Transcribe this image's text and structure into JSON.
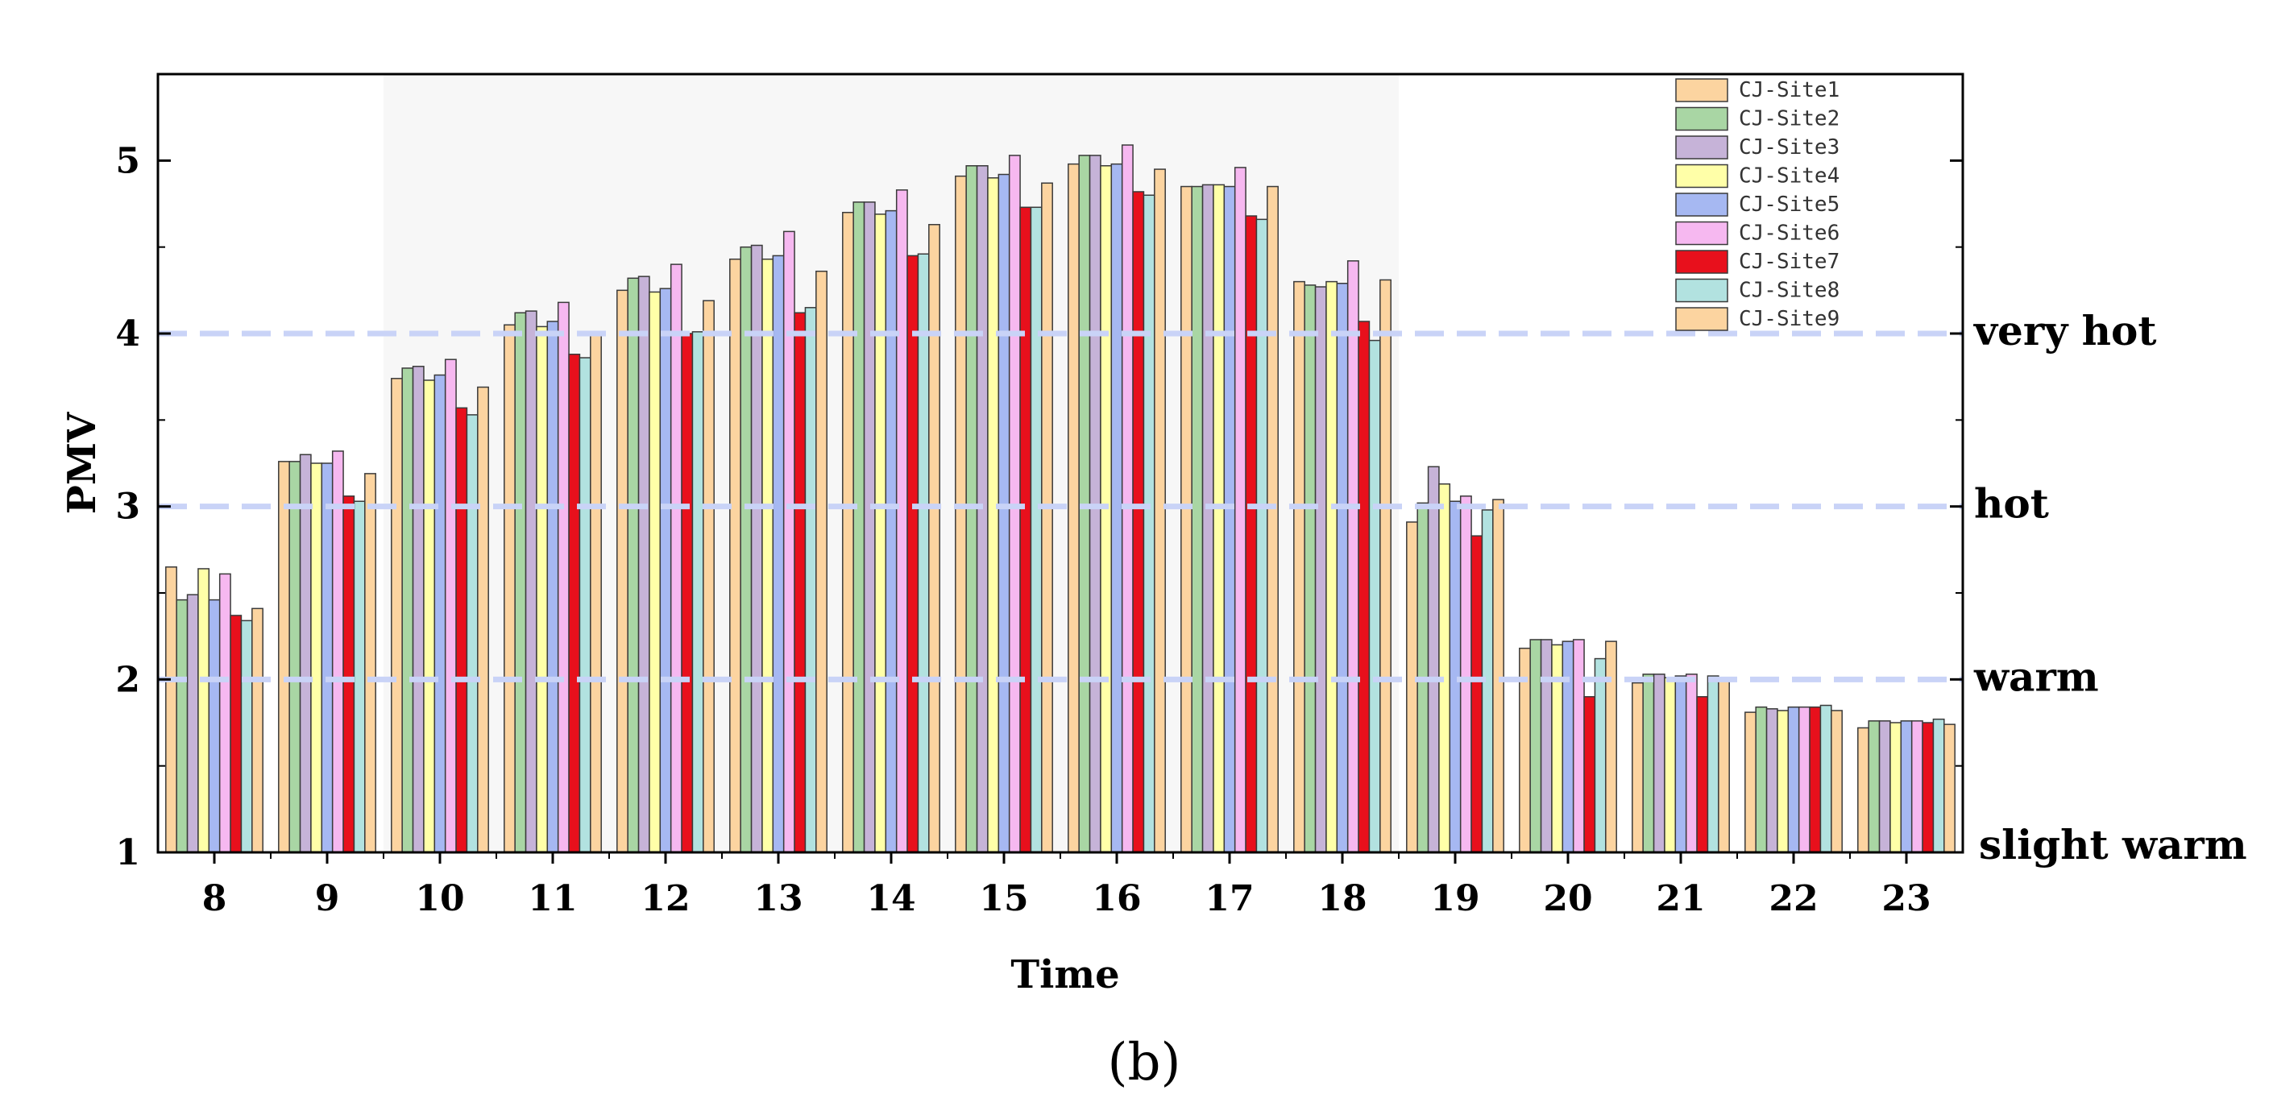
{
  "chart_data": {
    "type": "bar",
    "title": "",
    "xlabel": "Time",
    "ylabel": "PMV",
    "caption": "(b)",
    "ylim": [
      1,
      5.5
    ],
    "yticks": [
      "1",
      "2",
      "3",
      "4",
      "5"
    ],
    "ytick_values": [
      1,
      2,
      3,
      4,
      5
    ],
    "categories": [
      "8",
      "9",
      "10",
      "11",
      "12",
      "13",
      "14",
      "15",
      "16",
      "17",
      "18",
      "19",
      "20",
      "21",
      "22",
      "23"
    ],
    "highlight_range": [
      "10",
      "18"
    ],
    "legend_position": "top-right",
    "reference_lines": [
      {
        "value": 4,
        "label": "very hot"
      },
      {
        "value": 3,
        "label": "hot"
      },
      {
        "value": 2,
        "label": "warm"
      },
      {
        "value": 1,
        "label": "slight warm"
      }
    ],
    "series": [
      {
        "name": "CJ-Site1",
        "color": "#fcd4a0",
        "values": [
          2.65,
          3.26,
          3.74,
          4.05,
          4.25,
          4.43,
          4.7,
          4.91,
          4.98,
          4.85,
          4.3,
          2.91,
          2.18,
          1.98,
          1.81,
          1.72
        ]
      },
      {
        "name": "CJ-Site2",
        "color": "#a9d6a4",
        "values": [
          2.46,
          3.26,
          3.8,
          4.12,
          4.32,
          4.5,
          4.76,
          4.97,
          5.03,
          4.85,
          4.28,
          3.02,
          2.23,
          2.03,
          1.84,
          1.76
        ]
      },
      {
        "name": "CJ-Site3",
        "color": "#c6b3d8",
        "values": [
          2.49,
          3.3,
          3.81,
          4.13,
          4.33,
          4.51,
          4.76,
          4.97,
          5.03,
          4.86,
          4.27,
          3.23,
          2.23,
          2.03,
          1.83,
          1.76
        ]
      },
      {
        "name": "CJ-Site4",
        "color": "#ffffa8",
        "values": [
          2.64,
          3.25,
          3.73,
          4.04,
          4.24,
          4.43,
          4.69,
          4.9,
          4.97,
          4.86,
          4.3,
          3.13,
          2.2,
          2.01,
          1.82,
          1.75
        ]
      },
      {
        "name": "CJ-Site5",
        "color": "#a6b8f2",
        "values": [
          2.46,
          3.25,
          3.76,
          4.07,
          4.26,
          4.45,
          4.71,
          4.92,
          4.98,
          4.85,
          4.29,
          3.03,
          2.22,
          2.02,
          1.84,
          1.76
        ]
      },
      {
        "name": "CJ-Site6",
        "color": "#f6b8f0",
        "values": [
          2.61,
          3.32,
          3.85,
          4.18,
          4.4,
          4.59,
          4.83,
          5.03,
          5.09,
          4.96,
          4.42,
          3.06,
          2.23,
          2.03,
          1.84,
          1.76
        ]
      },
      {
        "name": "CJ-Site7",
        "color": "#e8101c",
        "values": [
          2.37,
          3.06,
          3.57,
          3.88,
          4.0,
          4.12,
          4.45,
          4.73,
          4.82,
          4.68,
          4.07,
          2.83,
          1.9,
          1.9,
          1.84,
          1.75
        ]
      },
      {
        "name": "CJ-Site8",
        "color": "#b2e2e0",
        "values": [
          2.34,
          3.03,
          3.53,
          3.86,
          4.01,
          4.15,
          4.46,
          4.73,
          4.8,
          4.66,
          3.96,
          2.98,
          2.12,
          2.02,
          1.85,
          1.77
        ]
      },
      {
        "name": "CJ-Site9",
        "color": "#fcd4a0",
        "values": [
          2.41,
          3.19,
          3.69,
          4.0,
          4.19,
          4.36,
          4.63,
          4.87,
          4.95,
          4.85,
          4.31,
          3.04,
          2.22,
          2.01,
          1.82,
          1.74
        ]
      }
    ]
  }
}
